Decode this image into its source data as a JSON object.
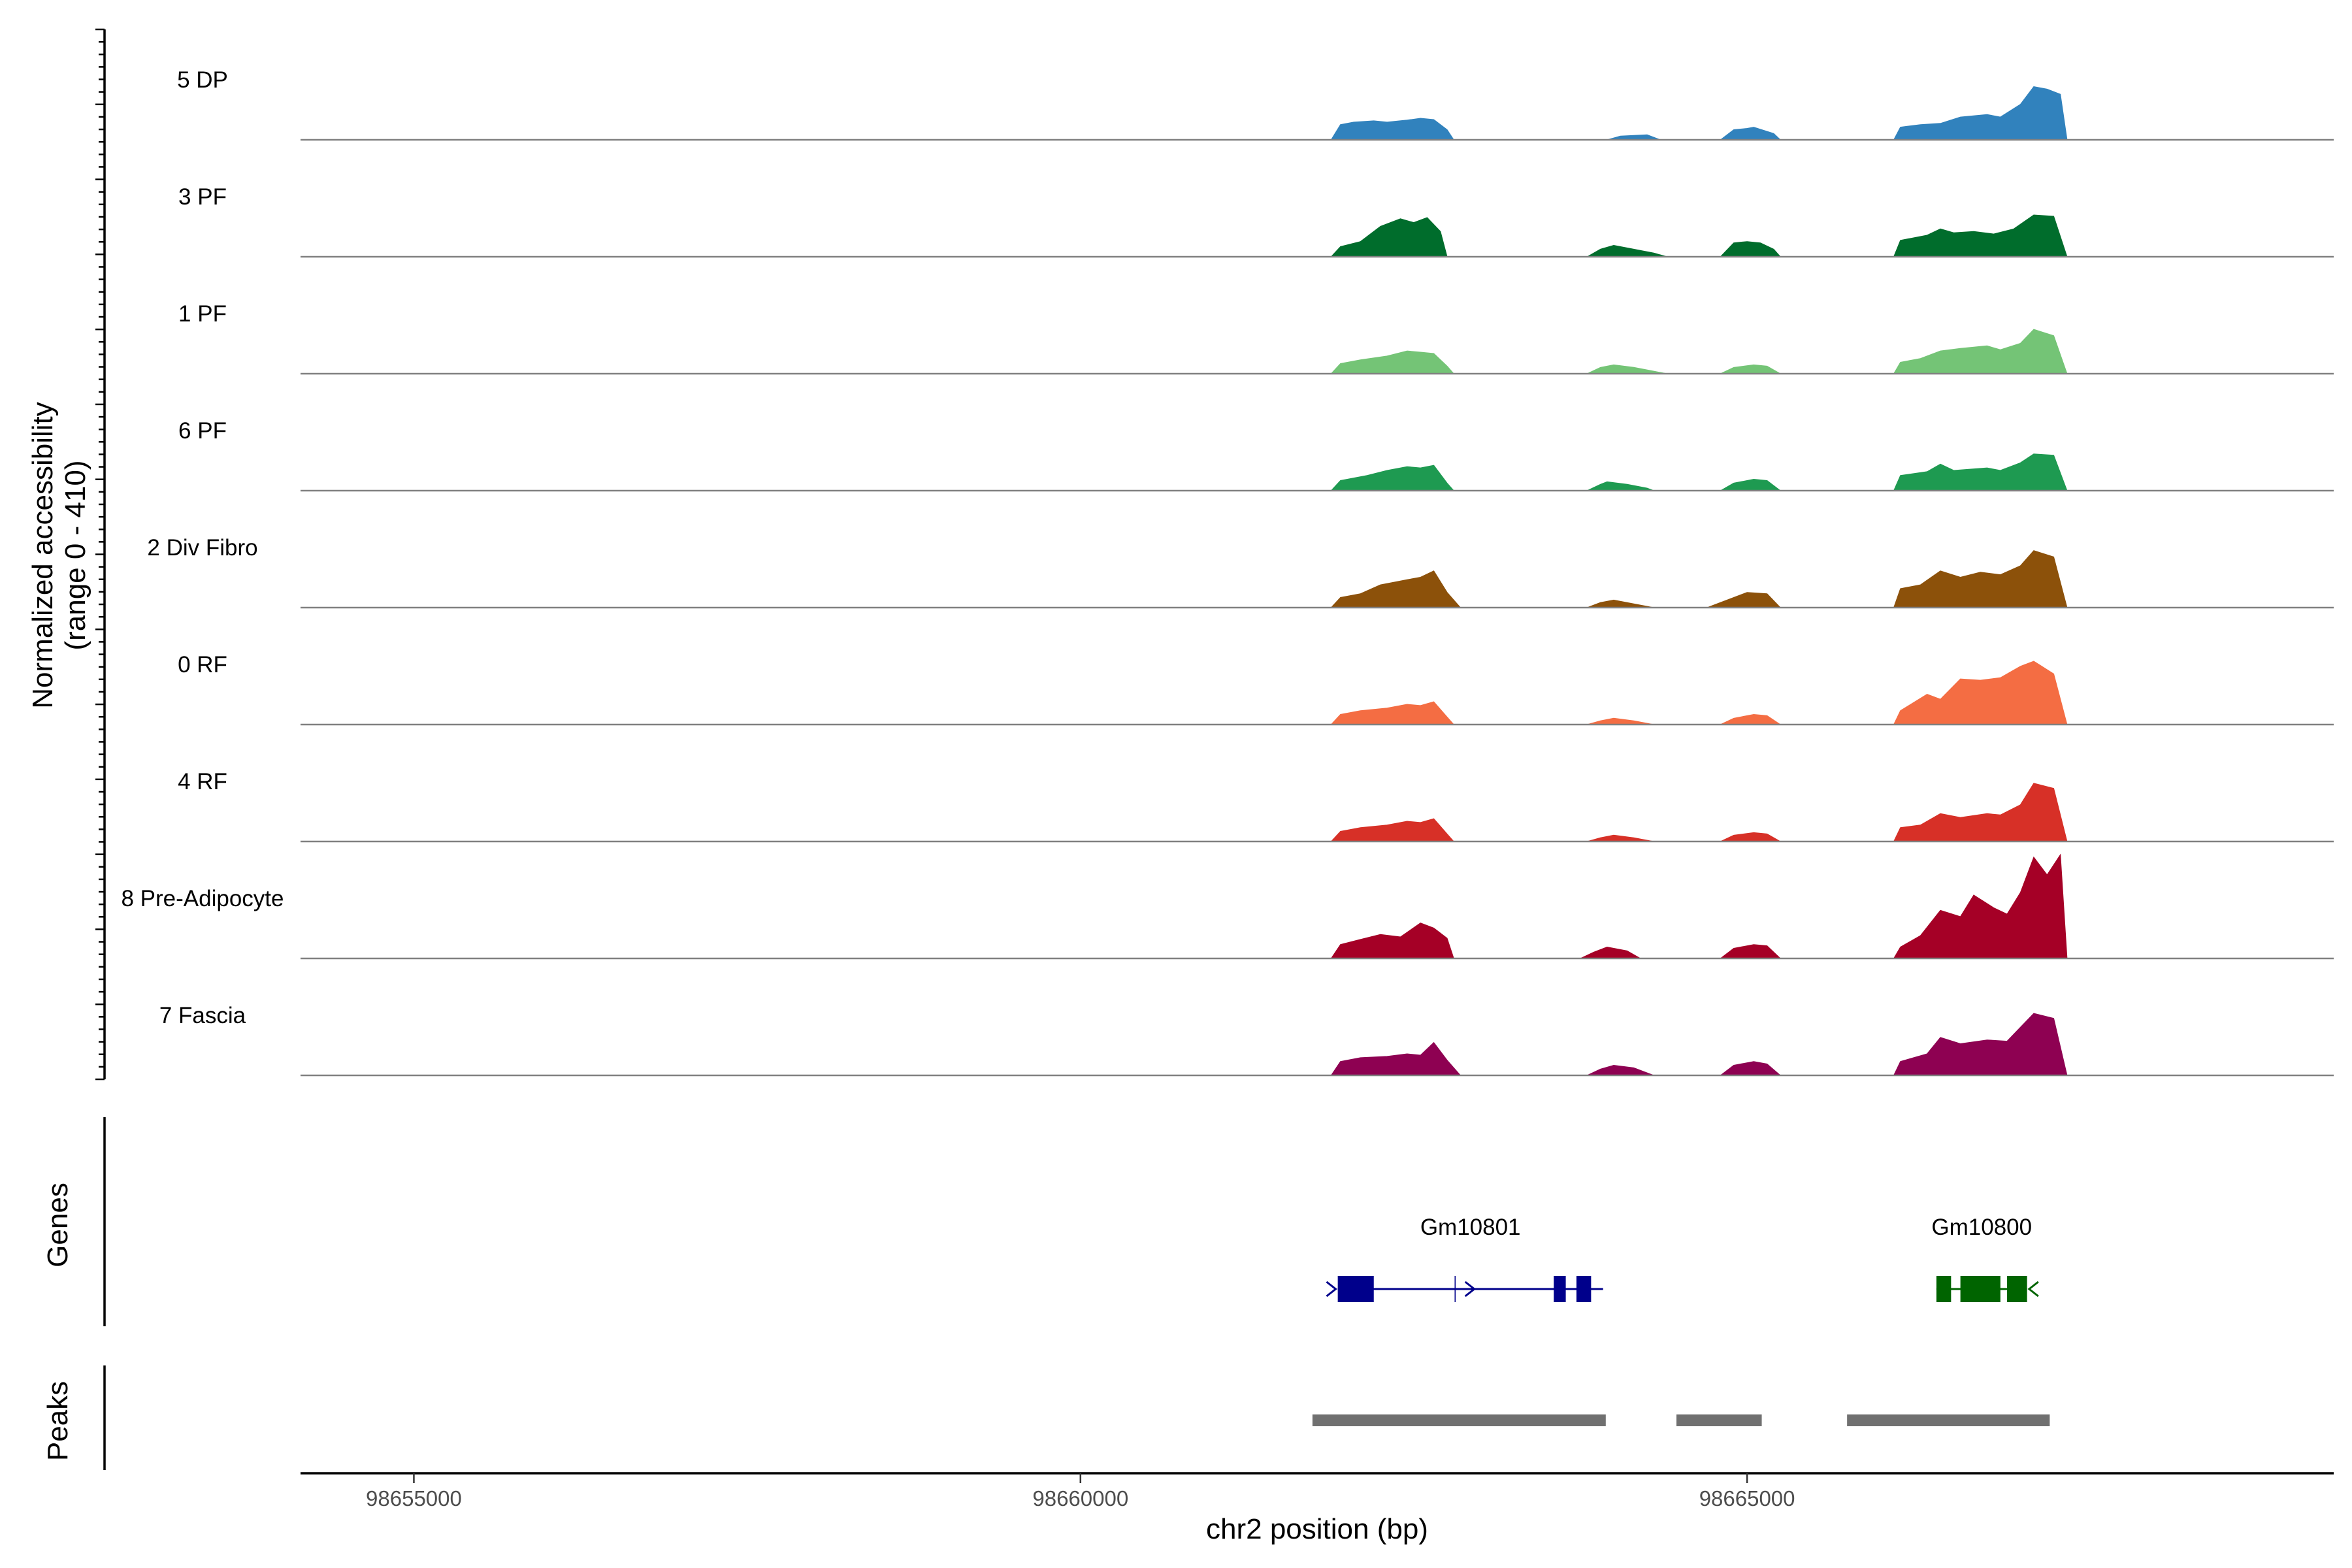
{
  "chart_data": {
    "type": "area",
    "title": "",
    "xlabel": "chr2 position (bp)",
    "ylabel": "Normalized accessibility",
    "ylabel_range": "(range 0 - 410)",
    "xlim": [
      98654150,
      98669400
    ],
    "ylim": [
      0,
      410
    ],
    "x_ticks": [
      98655000,
      98660000,
      98665000
    ],
    "x_tick_labels": [
      "98655000",
      "98660000",
      "98665000"
    ],
    "tracks": [
      {
        "name": "5 DP",
        "color": "#3182bd",
        "points": [
          [
            98661880,
            0
          ],
          [
            98661950,
            60
          ],
          [
            98662050,
            70
          ],
          [
            98662200,
            75
          ],
          [
            98662300,
            70
          ],
          [
            98662450,
            78
          ],
          [
            98662550,
            85
          ],
          [
            98662650,
            80
          ],
          [
            98662750,
            40
          ],
          [
            98662800,
            0
          ],
          [
            98663950,
            0
          ],
          [
            98664050,
            15
          ],
          [
            98664250,
            20
          ],
          [
            98664350,
            0
          ],
          [
            98664800,
            0
          ],
          [
            98664900,
            40
          ],
          [
            98665000,
            45
          ],
          [
            98665050,
            50
          ],
          [
            98665200,
            25
          ],
          [
            98665250,
            0
          ],
          [
            98666100,
            0
          ],
          [
            98666150,
            50
          ],
          [
            98666300,
            60
          ],
          [
            98666450,
            65
          ],
          [
            98666600,
            90
          ],
          [
            98666800,
            100
          ],
          [
            98666900,
            90
          ],
          [
            98667050,
            140
          ],
          [
            98667150,
            210
          ],
          [
            98667250,
            200
          ],
          [
            98667350,
            180
          ],
          [
            98667400,
            0
          ]
        ]
      },
      {
        "name": "3 PF",
        "color": "#006d2c",
        "points": [
          [
            98661880,
            0
          ],
          [
            98661950,
            40
          ],
          [
            98662100,
            60
          ],
          [
            98662250,
            120
          ],
          [
            98662400,
            150
          ],
          [
            98662500,
            135
          ],
          [
            98662600,
            155
          ],
          [
            98662700,
            100
          ],
          [
            98662750,
            0
          ],
          [
            98663800,
            0
          ],
          [
            98663900,
            30
          ],
          [
            98664000,
            45
          ],
          [
            98664150,
            30
          ],
          [
            98664300,
            15
          ],
          [
            98664400,
            0
          ],
          [
            98664800,
            0
          ],
          [
            98664900,
            55
          ],
          [
            98665000,
            60
          ],
          [
            98665100,
            55
          ],
          [
            98665200,
            30
          ],
          [
            98665250,
            0
          ],
          [
            98666100,
            0
          ],
          [
            98666150,
            65
          ],
          [
            98666350,
            85
          ],
          [
            98666450,
            110
          ],
          [
            98666550,
            95
          ],
          [
            98666700,
            100
          ],
          [
            98666850,
            90
          ],
          [
            98667000,
            110
          ],
          [
            98667150,
            165
          ],
          [
            98667300,
            160
          ],
          [
            98667400,
            0
          ]
        ]
      },
      {
        "name": "1 PF",
        "color": "#74c476",
        "points": [
          [
            98661880,
            0
          ],
          [
            98661950,
            40
          ],
          [
            98662100,
            55
          ],
          [
            98662300,
            70
          ],
          [
            98662450,
            90
          ],
          [
            98662550,
            85
          ],
          [
            98662650,
            80
          ],
          [
            98662750,
            30
          ],
          [
            98662800,
            0
          ],
          [
            98663800,
            0
          ],
          [
            98663900,
            25
          ],
          [
            98664000,
            35
          ],
          [
            98664150,
            25
          ],
          [
            98664300,
            10
          ],
          [
            98664400,
            0
          ],
          [
            98664800,
            0
          ],
          [
            98664900,
            25
          ],
          [
            98665050,
            35
          ],
          [
            98665150,
            30
          ],
          [
            98665250,
            0
          ],
          [
            98666100,
            0
          ],
          [
            98666150,
            45
          ],
          [
            98666300,
            60
          ],
          [
            98666450,
            90
          ],
          [
            98666600,
            100
          ],
          [
            98666800,
            110
          ],
          [
            98666900,
            95
          ],
          [
            98667050,
            120
          ],
          [
            98667150,
            175
          ],
          [
            98667300,
            150
          ],
          [
            98667400,
            0
          ]
        ]
      },
      {
        "name": "6 PF",
        "color": "#1e9a51",
        "points": [
          [
            98661880,
            0
          ],
          [
            98661950,
            40
          ],
          [
            98662150,
            60
          ],
          [
            98662300,
            80
          ],
          [
            98662450,
            95
          ],
          [
            98662550,
            90
          ],
          [
            98662650,
            100
          ],
          [
            98662750,
            30
          ],
          [
            98662800,
            0
          ],
          [
            98663800,
            0
          ],
          [
            98663900,
            25
          ],
          [
            98663950,
            35
          ],
          [
            98664100,
            25
          ],
          [
            98664250,
            10
          ],
          [
            98664300,
            0
          ],
          [
            98664800,
            0
          ],
          [
            98664900,
            30
          ],
          [
            98665050,
            45
          ],
          [
            98665150,
            40
          ],
          [
            98665250,
            0
          ],
          [
            98666100,
            0
          ],
          [
            98666150,
            60
          ],
          [
            98666350,
            75
          ],
          [
            98666450,
            105
          ],
          [
            98666550,
            80
          ],
          [
            98666800,
            90
          ],
          [
            98666900,
            80
          ],
          [
            98667050,
            110
          ],
          [
            98667150,
            145
          ],
          [
            98667300,
            140
          ],
          [
            98667400,
            0
          ]
        ]
      },
      {
        "name": "2 Div Fibro",
        "color": "#8c510a",
        "points": [
          [
            98661880,
            0
          ],
          [
            98661950,
            40
          ],
          [
            98662100,
            55
          ],
          [
            98662250,
            90
          ],
          [
            98662450,
            110
          ],
          [
            98662550,
            120
          ],
          [
            98662650,
            145
          ],
          [
            98662750,
            60
          ],
          [
            98662850,
            0
          ],
          [
            98663800,
            0
          ],
          [
            98663900,
            20
          ],
          [
            98664000,
            30
          ],
          [
            98664150,
            15
          ],
          [
            98664300,
            0
          ],
          [
            98664700,
            0
          ],
          [
            98664850,
            30
          ],
          [
            98665000,
            60
          ],
          [
            98665150,
            55
          ],
          [
            98665250,
            0
          ],
          [
            98666100,
            0
          ],
          [
            98666150,
            75
          ],
          [
            98666300,
            90
          ],
          [
            98666450,
            145
          ],
          [
            98666600,
            120
          ],
          [
            98666750,
            140
          ],
          [
            98666900,
            130
          ],
          [
            98667050,
            165
          ],
          [
            98667150,
            225
          ],
          [
            98667300,
            200
          ],
          [
            98667400,
            0
          ]
        ]
      },
      {
        "name": "0 RF",
        "color": "#f46d43",
        "points": [
          [
            98661880,
            0
          ],
          [
            98661950,
            40
          ],
          [
            98662100,
            55
          ],
          [
            98662300,
            65
          ],
          [
            98662450,
            80
          ],
          [
            98662550,
            75
          ],
          [
            98662650,
            90
          ],
          [
            98662750,
            30
          ],
          [
            98662800,
            0
          ],
          [
            98663800,
            0
          ],
          [
            98663900,
            15
          ],
          [
            98664000,
            25
          ],
          [
            98664150,
            15
          ],
          [
            98664300,
            0
          ],
          [
            98664800,
            0
          ],
          [
            98664900,
            25
          ],
          [
            98665050,
            40
          ],
          [
            98665150,
            35
          ],
          [
            98665250,
            0
          ],
          [
            98666100,
            0
          ],
          [
            98666150,
            55
          ],
          [
            98666350,
            120
          ],
          [
            98666450,
            100
          ],
          [
            98666600,
            180
          ],
          [
            98666750,
            175
          ],
          [
            98666900,
            185
          ],
          [
            98667050,
            230
          ],
          [
            98667150,
            250
          ],
          [
            98667300,
            200
          ],
          [
            98667400,
            0
          ]
        ]
      },
      {
        "name": "4 RF",
        "color": "#d73027",
        "points": [
          [
            98661880,
            0
          ],
          [
            98661950,
            40
          ],
          [
            98662100,
            55
          ],
          [
            98662300,
            65
          ],
          [
            98662450,
            80
          ],
          [
            98662550,
            75
          ],
          [
            98662650,
            90
          ],
          [
            98662750,
            30
          ],
          [
            98662800,
            0
          ],
          [
            98663800,
            0
          ],
          [
            98663900,
            15
          ],
          [
            98664000,
            25
          ],
          [
            98664150,
            15
          ],
          [
            98664300,
            0
          ],
          [
            98664800,
            0
          ],
          [
            98664900,
            25
          ],
          [
            98665050,
            35
          ],
          [
            98665150,
            30
          ],
          [
            98665250,
            0
          ],
          [
            98666100,
            0
          ],
          [
            98666150,
            55
          ],
          [
            98666300,
            65
          ],
          [
            98666450,
            110
          ],
          [
            98666600,
            95
          ],
          [
            98666800,
            110
          ],
          [
            98666900,
            105
          ],
          [
            98667050,
            145
          ],
          [
            98667150,
            230
          ],
          [
            98667300,
            210
          ],
          [
            98667400,
            0
          ]
        ]
      },
      {
        "name": "8 Pre-Adipocyte",
        "color": "#a50026",
        "points": [
          [
            98661880,
            0
          ],
          [
            98661950,
            55
          ],
          [
            98662100,
            75
          ],
          [
            98662250,
            95
          ],
          [
            98662400,
            85
          ],
          [
            98662550,
            140
          ],
          [
            98662650,
            120
          ],
          [
            98662750,
            80
          ],
          [
            98662800,
            0
          ],
          [
            98663750,
            0
          ],
          [
            98663850,
            25
          ],
          [
            98663950,
            45
          ],
          [
            98664100,
            30
          ],
          [
            98664200,
            0
          ],
          [
            98664800,
            0
          ],
          [
            98664900,
            40
          ],
          [
            98665050,
            55
          ],
          [
            98665150,
            50
          ],
          [
            98665250,
            0
          ],
          [
            98666100,
            0
          ],
          [
            98666150,
            45
          ],
          [
            98666300,
            90
          ],
          [
            98666450,
            190
          ],
          [
            98666600,
            165
          ],
          [
            98666700,
            250
          ],
          [
            98666850,
            200
          ],
          [
            98666950,
            175
          ],
          [
            98667050,
            260
          ],
          [
            98667150,
            400
          ],
          [
            98667250,
            330
          ],
          [
            98667350,
            410
          ],
          [
            98667400,
            0
          ]
        ]
      },
      {
        "name": "7 Fascia",
        "color": "#8e0152",
        "points": [
          [
            98661880,
            0
          ],
          [
            98661950,
            55
          ],
          [
            98662100,
            70
          ],
          [
            98662300,
            75
          ],
          [
            98662450,
            85
          ],
          [
            98662550,
            80
          ],
          [
            98662650,
            130
          ],
          [
            98662750,
            60
          ],
          [
            98662850,
            0
          ],
          [
            98663800,
            0
          ],
          [
            98663900,
            25
          ],
          [
            98664000,
            40
          ],
          [
            98664150,
            30
          ],
          [
            98664300,
            0
          ],
          [
            98664800,
            0
          ],
          [
            98664900,
            40
          ],
          [
            98665050,
            55
          ],
          [
            98665150,
            45
          ],
          [
            98665250,
            0
          ],
          [
            98666100,
            0
          ],
          [
            98666150,
            55
          ],
          [
            98666350,
            85
          ],
          [
            98666450,
            150
          ],
          [
            98666600,
            125
          ],
          [
            98666800,
            140
          ],
          [
            98666950,
            135
          ],
          [
            98667050,
            190
          ],
          [
            98667150,
            245
          ],
          [
            98667300,
            225
          ],
          [
            98667400,
            0
          ]
        ]
      }
    ],
    "genes_panel_label": "Genes",
    "genes": [
      {
        "name": "Gm10801",
        "color": "#00008b",
        "start": 98661930,
        "end": 98663920,
        "strand": "+",
        "exons": [
          [
            98661930,
            98662200
          ],
          [
            98663550,
            98663640
          ],
          [
            98663720,
            98663830
          ]
        ],
        "tick": 98662810,
        "arrows": [
          98661880,
          98662920
        ]
      },
      {
        "name": "Gm10800",
        "color": "#006400",
        "start": 98666420,
        "end": 98667100,
        "strand": "-",
        "exons": [
          [
            98666420,
            98666530
          ],
          [
            98666600,
            98666900
          ],
          [
            98666950,
            98667100
          ]
        ],
        "arrows": [
          98667150
        ]
      }
    ],
    "peaks_panel_label": "Peaks",
    "peaks_color": "#707070",
    "peaks": [
      [
        98661740,
        98663940
      ],
      [
        98664470,
        98665110
      ],
      [
        98665750,
        98667270
      ]
    ]
  }
}
